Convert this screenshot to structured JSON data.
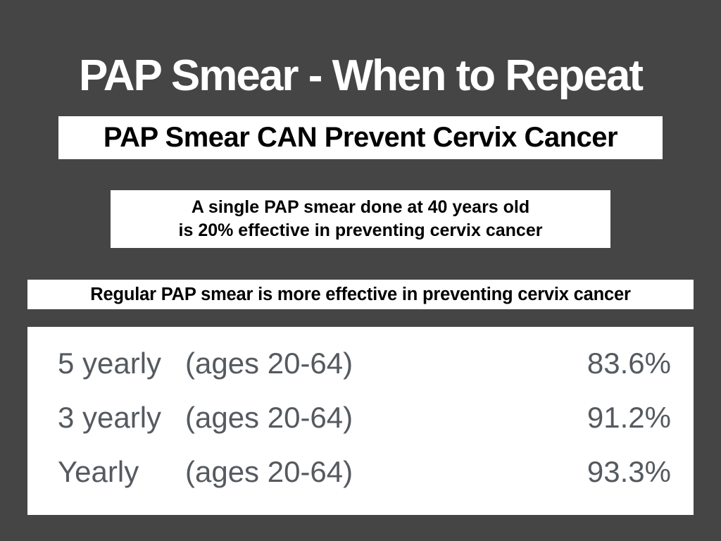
{
  "title": "PAP Smear - When to Repeat",
  "subtitle": "PAP Smear CAN Prevent Cervix Cancer",
  "single_smear": {
    "line1": "A single PAP smear done at 40 years old",
    "line2": "is 20% effective in preventing cervix cancer"
  },
  "regular_note": "Regular PAP smear is more effective in preventing cervix cancer",
  "effectiveness_table": [
    {
      "frequency": "5 yearly",
      "ages": "(ages 20-64)",
      "effectiveness": "83.6%"
    },
    {
      "frequency": "3 yearly",
      "ages": "(ages 20-64)",
      "effectiveness": "91.2%"
    },
    {
      "frequency": "Yearly",
      "ages": "(ages 20-64)",
      "effectiveness": "93.3%"
    }
  ],
  "colors": {
    "background": "#454545",
    "box": "#ffffff",
    "table_text": "#555a60"
  }
}
